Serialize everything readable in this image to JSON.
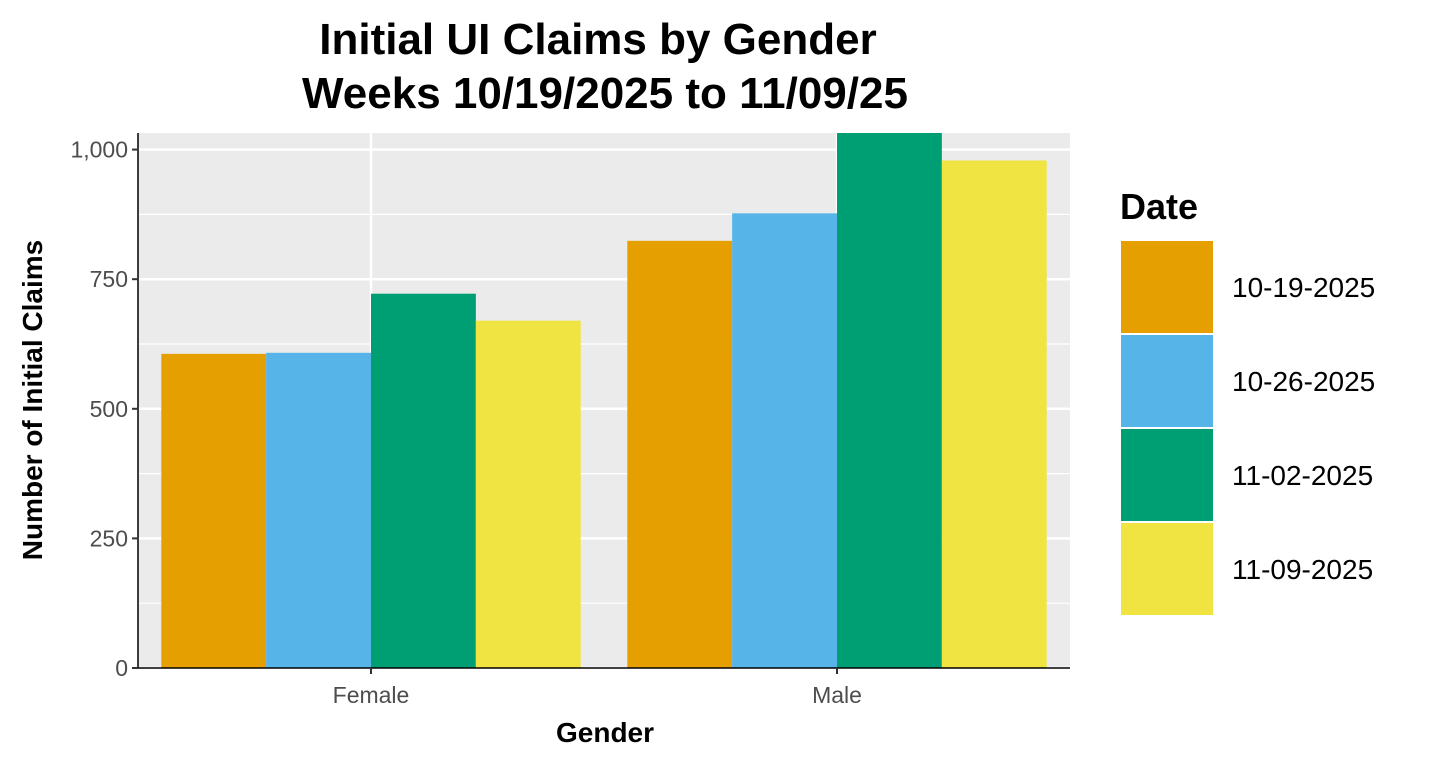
{
  "chart_data": {
    "type": "bar",
    "title": "Initial UI Claims by Gender",
    "subtitle": "Weeks  10/19/2025 to 11/09/25",
    "xlabel": "Gender",
    "ylabel": "Number of Initial Claims",
    "categories": [
      "Female",
      "Male"
    ],
    "ylim": [
      0,
      1032
    ],
    "yticks": [
      0,
      250,
      500,
      750,
      1000
    ],
    "ytick_labels": [
      "0",
      "250",
      "500",
      "750",
      "1,000"
    ],
    "grid": true,
    "legend": {
      "title": "Date",
      "position": "right"
    },
    "series": [
      {
        "name": "10-19-2025",
        "color": "#E69F00",
        "values": [
          606,
          824
        ]
      },
      {
        "name": "10-26-2025",
        "color": "#56B4E9",
        "values": [
          608,
          877
        ]
      },
      {
        "name": "11-02-2025",
        "color": "#009E73",
        "values": [
          722,
          1032
        ]
      },
      {
        "name": "11-09-2025",
        "color": "#F0E442",
        "values": [
          670,
          979
        ]
      }
    ]
  }
}
